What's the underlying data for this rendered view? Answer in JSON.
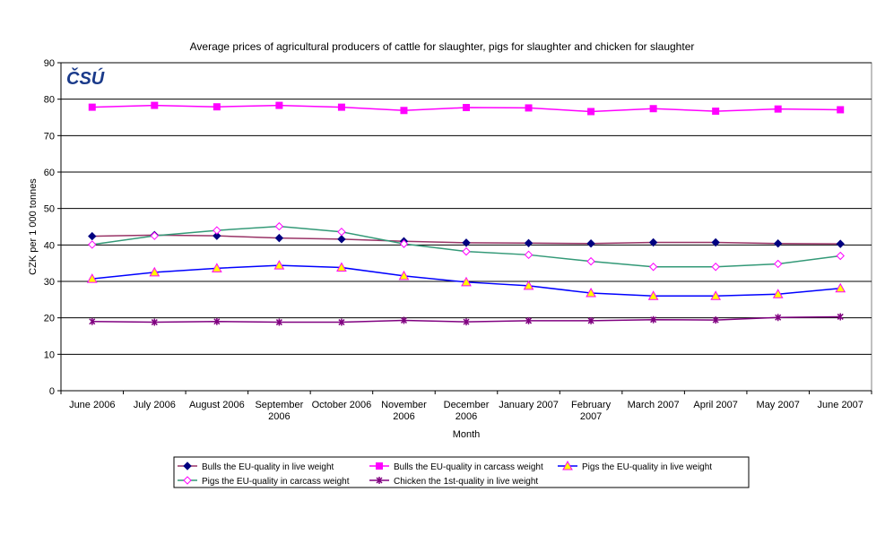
{
  "chart_data": {
    "type": "line",
    "title": "Average prices of agricultural producers of cattle for slaughter, pigs for slaughter and chicken for slaughter",
    "xlabel": "Month",
    "ylabel": "CZK per 1 000 tonnes",
    "ylim": [
      0,
      90
    ],
    "yticks": [
      0,
      10,
      20,
      30,
      40,
      50,
      60,
      70,
      80,
      90
    ],
    "grid": true,
    "legend_position": "bottom",
    "logo": "ČSÚ",
    "categories": [
      "June 2006",
      "July 2006",
      "August 2006",
      "September 2006",
      "October 2006",
      "November 2006",
      "December 2006",
      "January 2007",
      "February 2007",
      "March 2007",
      "April 2007",
      "May 2007",
      "June 2007"
    ],
    "category_lines": [
      [
        "June 2006"
      ],
      [
        "July 2006"
      ],
      [
        "August 2006"
      ],
      [
        "September",
        "2006"
      ],
      [
        "October 2006"
      ],
      [
        "November",
        "2006"
      ],
      [
        "December",
        "2006"
      ],
      [
        "January 2007"
      ],
      [
        "February",
        "2007"
      ],
      [
        "March 2007"
      ],
      [
        "April 2007"
      ],
      [
        "May 2007"
      ],
      [
        "June 2007"
      ]
    ],
    "series": [
      {
        "name": "Bulls the EU-quality in live weight",
        "line_color": "#993366",
        "marker": "diamond",
        "marker_color": "#000080",
        "values": [
          42.4,
          42.7,
          42.5,
          41.9,
          41.6,
          41.0,
          40.6,
          40.5,
          40.4,
          40.7,
          40.7,
          40.4,
          40.3
        ]
      },
      {
        "name": "Bulls the EU-quality in carcass weight",
        "line_color": "#FF00FF",
        "marker": "square",
        "marker_color": "#FF00FF",
        "values": [
          77.8,
          78.3,
          77.9,
          78.3,
          77.8,
          76.9,
          77.7,
          77.6,
          76.6,
          77.4,
          76.7,
          77.3,
          77.1
        ]
      },
      {
        "name": "Pigs the EU-quality in live weight",
        "line_color": "#0000FF",
        "marker": "triangle",
        "marker_color": "#FFFF00",
        "values": [
          30.7,
          32.5,
          33.6,
          34.4,
          33.8,
          31.5,
          29.8,
          28.8,
          26.8,
          26.0,
          26.0,
          26.5,
          28.1
        ]
      },
      {
        "name": "Pigs the EU-quality in carcass weight",
        "line_color": "#339977",
        "marker": "open-diamond",
        "marker_color": "#FF00FF",
        "values": [
          40.1,
          42.5,
          44.0,
          45.1,
          43.6,
          40.3,
          38.2,
          37.3,
          35.5,
          34.0,
          34.0,
          34.8,
          37.0
        ]
      },
      {
        "name": "Chicken the 1st-quality in live weight",
        "line_color": "#800080",
        "marker": "star",
        "marker_color": "#800080",
        "values": [
          19.0,
          18.8,
          19.0,
          18.8,
          18.8,
          19.3,
          18.9,
          19.2,
          19.2,
          19.5,
          19.4,
          20.1,
          20.3
        ]
      }
    ]
  }
}
